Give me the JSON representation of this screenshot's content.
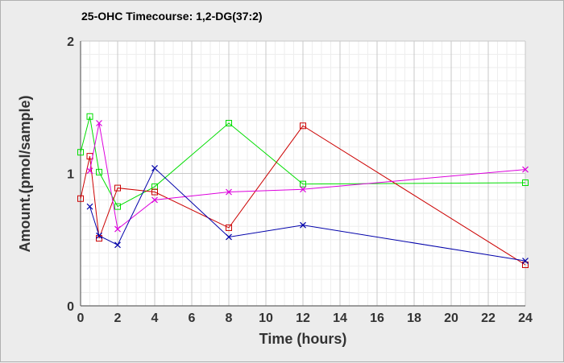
{
  "chart_data": {
    "type": "line",
    "title": "25-OHC Timecourse: 1,2-DG(37:2)",
    "xlabel": "Time (hours)",
    "ylabel": "Amount.(pmol/sample)",
    "xlim": [
      0,
      24
    ],
    "ylim": [
      0,
      2
    ],
    "x_ticks": [
      "0",
      "2",
      "4",
      "6",
      "8",
      "10",
      "12",
      "14",
      "16",
      "18",
      "20",
      "22",
      "24"
    ],
    "y_ticks": [
      "0",
      "1",
      "2"
    ],
    "grid": true,
    "legend": "none",
    "series": [
      {
        "color": "#00dd00",
        "marker": "square",
        "points": [
          [
            0,
            1.16
          ],
          [
            0.5,
            1.43
          ],
          [
            1,
            1.01
          ],
          [
            2,
            0.75
          ],
          [
            4,
            0.9
          ],
          [
            8,
            1.38
          ],
          [
            12,
            0.92
          ],
          [
            24,
            0.93
          ]
        ]
      },
      {
        "color": "#cc0000",
        "marker": "square",
        "points": [
          [
            0,
            0.81
          ],
          [
            0.5,
            1.13
          ],
          [
            1,
            0.51
          ],
          [
            2,
            0.89
          ],
          [
            4,
            0.86
          ],
          [
            8,
            0.59
          ],
          [
            12,
            1.36
          ],
          [
            24,
            0.31
          ]
        ]
      },
      {
        "color": "#dd00dd",
        "marker": "x",
        "points": [
          [
            0.5,
            1.02
          ],
          [
            1,
            1.38
          ],
          [
            2,
            0.58
          ],
          [
            4,
            0.8
          ],
          [
            8,
            0.86
          ],
          [
            12,
            0.88
          ],
          [
            24,
            1.03
          ]
        ]
      },
      {
        "color": "#0000aa",
        "marker": "x",
        "points": [
          [
            0.5,
            0.75
          ],
          [
            1,
            0.53
          ],
          [
            2,
            0.46
          ],
          [
            4,
            1.04
          ],
          [
            8,
            0.52
          ],
          [
            12,
            0.61
          ],
          [
            24,
            0.34
          ]
        ]
      }
    ]
  }
}
